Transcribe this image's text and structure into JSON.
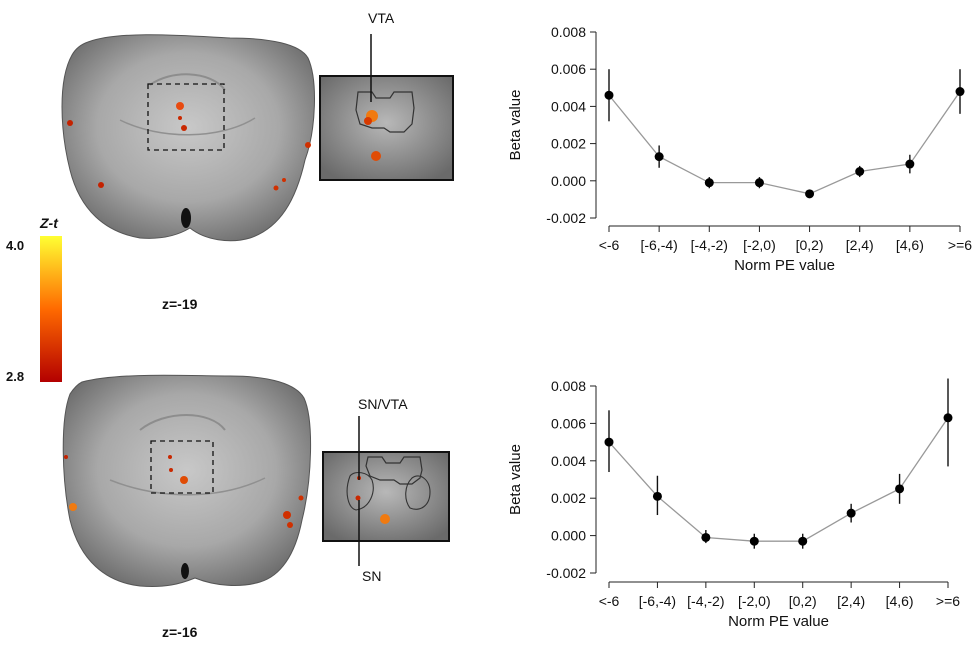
{
  "colorbar": {
    "title": "Z-t",
    "max_label": "4.0",
    "min_label": "2.8",
    "color_low": "#b30000",
    "color_mid": "#ff6a00",
    "color_high": "#ffff33"
  },
  "panels": [
    {
      "slice_label": "z=-19",
      "inset_labels": [
        "VTA"
      ]
    },
    {
      "slice_label": "z=-16",
      "inset_labels": [
        "SN/VTA",
        "SN"
      ]
    }
  ],
  "chart_data": [
    {
      "type": "line",
      "xlabel": "Norm PE value",
      "ylabel": "Beta value",
      "categories": [
        "<-6",
        "[-6,-4)",
        "[-4,-2)",
        "[-2,0)",
        "[0,2)",
        "[2,4)",
        "[4,6)",
        ">=6"
      ],
      "values": [
        0.0046,
        0.0013,
        -0.0001,
        -0.0001,
        -0.0007,
        0.0005,
        0.0009,
        0.0048
      ],
      "error_low": [
        0.0032,
        0.0007,
        -0.0004,
        -0.0004,
        -0.0009,
        0.0002,
        0.0004,
        0.0036
      ],
      "error_high": [
        0.006,
        0.0019,
        0.0002,
        0.0002,
        -0.0005,
        0.0008,
        0.0014,
        0.006
      ],
      "yticks": [
        "0.008",
        "0.006",
        "0.004",
        "0.002",
        "0.000",
        "-0.002"
      ],
      "ylim": [
        -0.002,
        0.008
      ],
      "marker_color": "#000000",
      "line_color": "#999999"
    },
    {
      "type": "line",
      "xlabel": "Norm PE value",
      "ylabel": "Beta value",
      "categories": [
        "<-6",
        "[-6,-4)",
        "[-4,-2)",
        "[-2,0)",
        "[0,2)",
        "[2,4)",
        "[4,6)",
        ">=6"
      ],
      "values": [
        0.005,
        0.0021,
        -0.0001,
        -0.0003,
        -0.0003,
        0.0012,
        0.0025,
        0.0063
      ],
      "error_low": [
        0.0034,
        0.0011,
        -0.0004,
        -0.0007,
        -0.0007,
        0.0007,
        0.0017,
        0.0037
      ],
      "error_high": [
        0.0067,
        0.0032,
        0.0003,
        0.0001,
        0.0001,
        0.0017,
        0.0033,
        0.0084
      ],
      "yticks": [
        "0.008",
        "0.006",
        "0.004",
        "0.002",
        "0.000",
        "-0.002"
      ],
      "ylim": [
        -0.002,
        0.008
      ],
      "marker_color": "#000000",
      "line_color": "#999999"
    }
  ]
}
